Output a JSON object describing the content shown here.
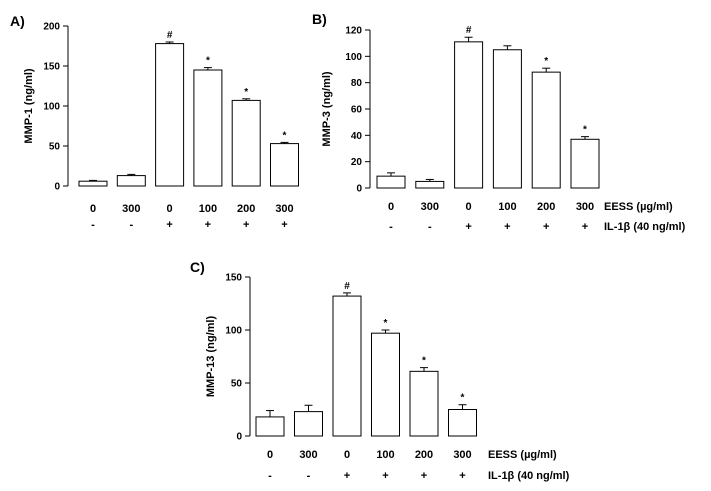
{
  "row_labels": {
    "eess": "EESS (µg/ml)",
    "il1b": "IL-1β (40 ng/ml)"
  },
  "chart_data": [
    {
      "type": "bar",
      "panel_label": "A)",
      "ylabel": "MMP-1 (ng/ml)",
      "ylim": [
        0,
        200
      ],
      "yticks": [
        0,
        50,
        100,
        150,
        200
      ],
      "categories": [
        "0",
        "300",
        "0",
        "100",
        "200",
        "300"
      ],
      "il1b": [
        "-",
        "-",
        "+",
        "+",
        "+",
        "+"
      ],
      "values": [
        6,
        13,
        178,
        145,
        107,
        53
      ],
      "errors": [
        1,
        1.5,
        2,
        3,
        2,
        1.5
      ],
      "annotations": [
        "",
        "",
        "#",
        "*",
        "*",
        "*"
      ]
    },
    {
      "type": "bar",
      "panel_label": "B)",
      "ylabel": "MMP-3 (ng/ml)",
      "ylim": [
        0,
        120
      ],
      "yticks": [
        0,
        20,
        40,
        60,
        80,
        100,
        120
      ],
      "categories": [
        "0",
        "300",
        "0",
        "100",
        "200",
        "300"
      ],
      "il1b": [
        "-",
        "-",
        "+",
        "+",
        "+",
        "+"
      ],
      "values": [
        9,
        5,
        111,
        105,
        88,
        37
      ],
      "errors": [
        2.5,
        1.5,
        3.5,
        3,
        3,
        2
      ],
      "annotations": [
        "",
        "",
        "#",
        "",
        "*",
        "*"
      ]
    },
    {
      "type": "bar",
      "panel_label": "C)",
      "ylabel": "MMP-13 (ng/ml)",
      "ylim": [
        0,
        150
      ],
      "yticks": [
        0,
        50,
        100,
        150
      ],
      "categories": [
        "0",
        "300",
        "0",
        "100",
        "200",
        "300"
      ],
      "il1b": [
        "-",
        "-",
        "+",
        "+",
        "+",
        "+"
      ],
      "values": [
        18,
        23,
        132,
        97,
        61,
        25
      ],
      "errors": [
        6,
        6,
        3,
        3,
        3.5,
        4.5
      ],
      "annotations": [
        "",
        "",
        "#",
        "*",
        "*",
        "*"
      ]
    }
  ]
}
